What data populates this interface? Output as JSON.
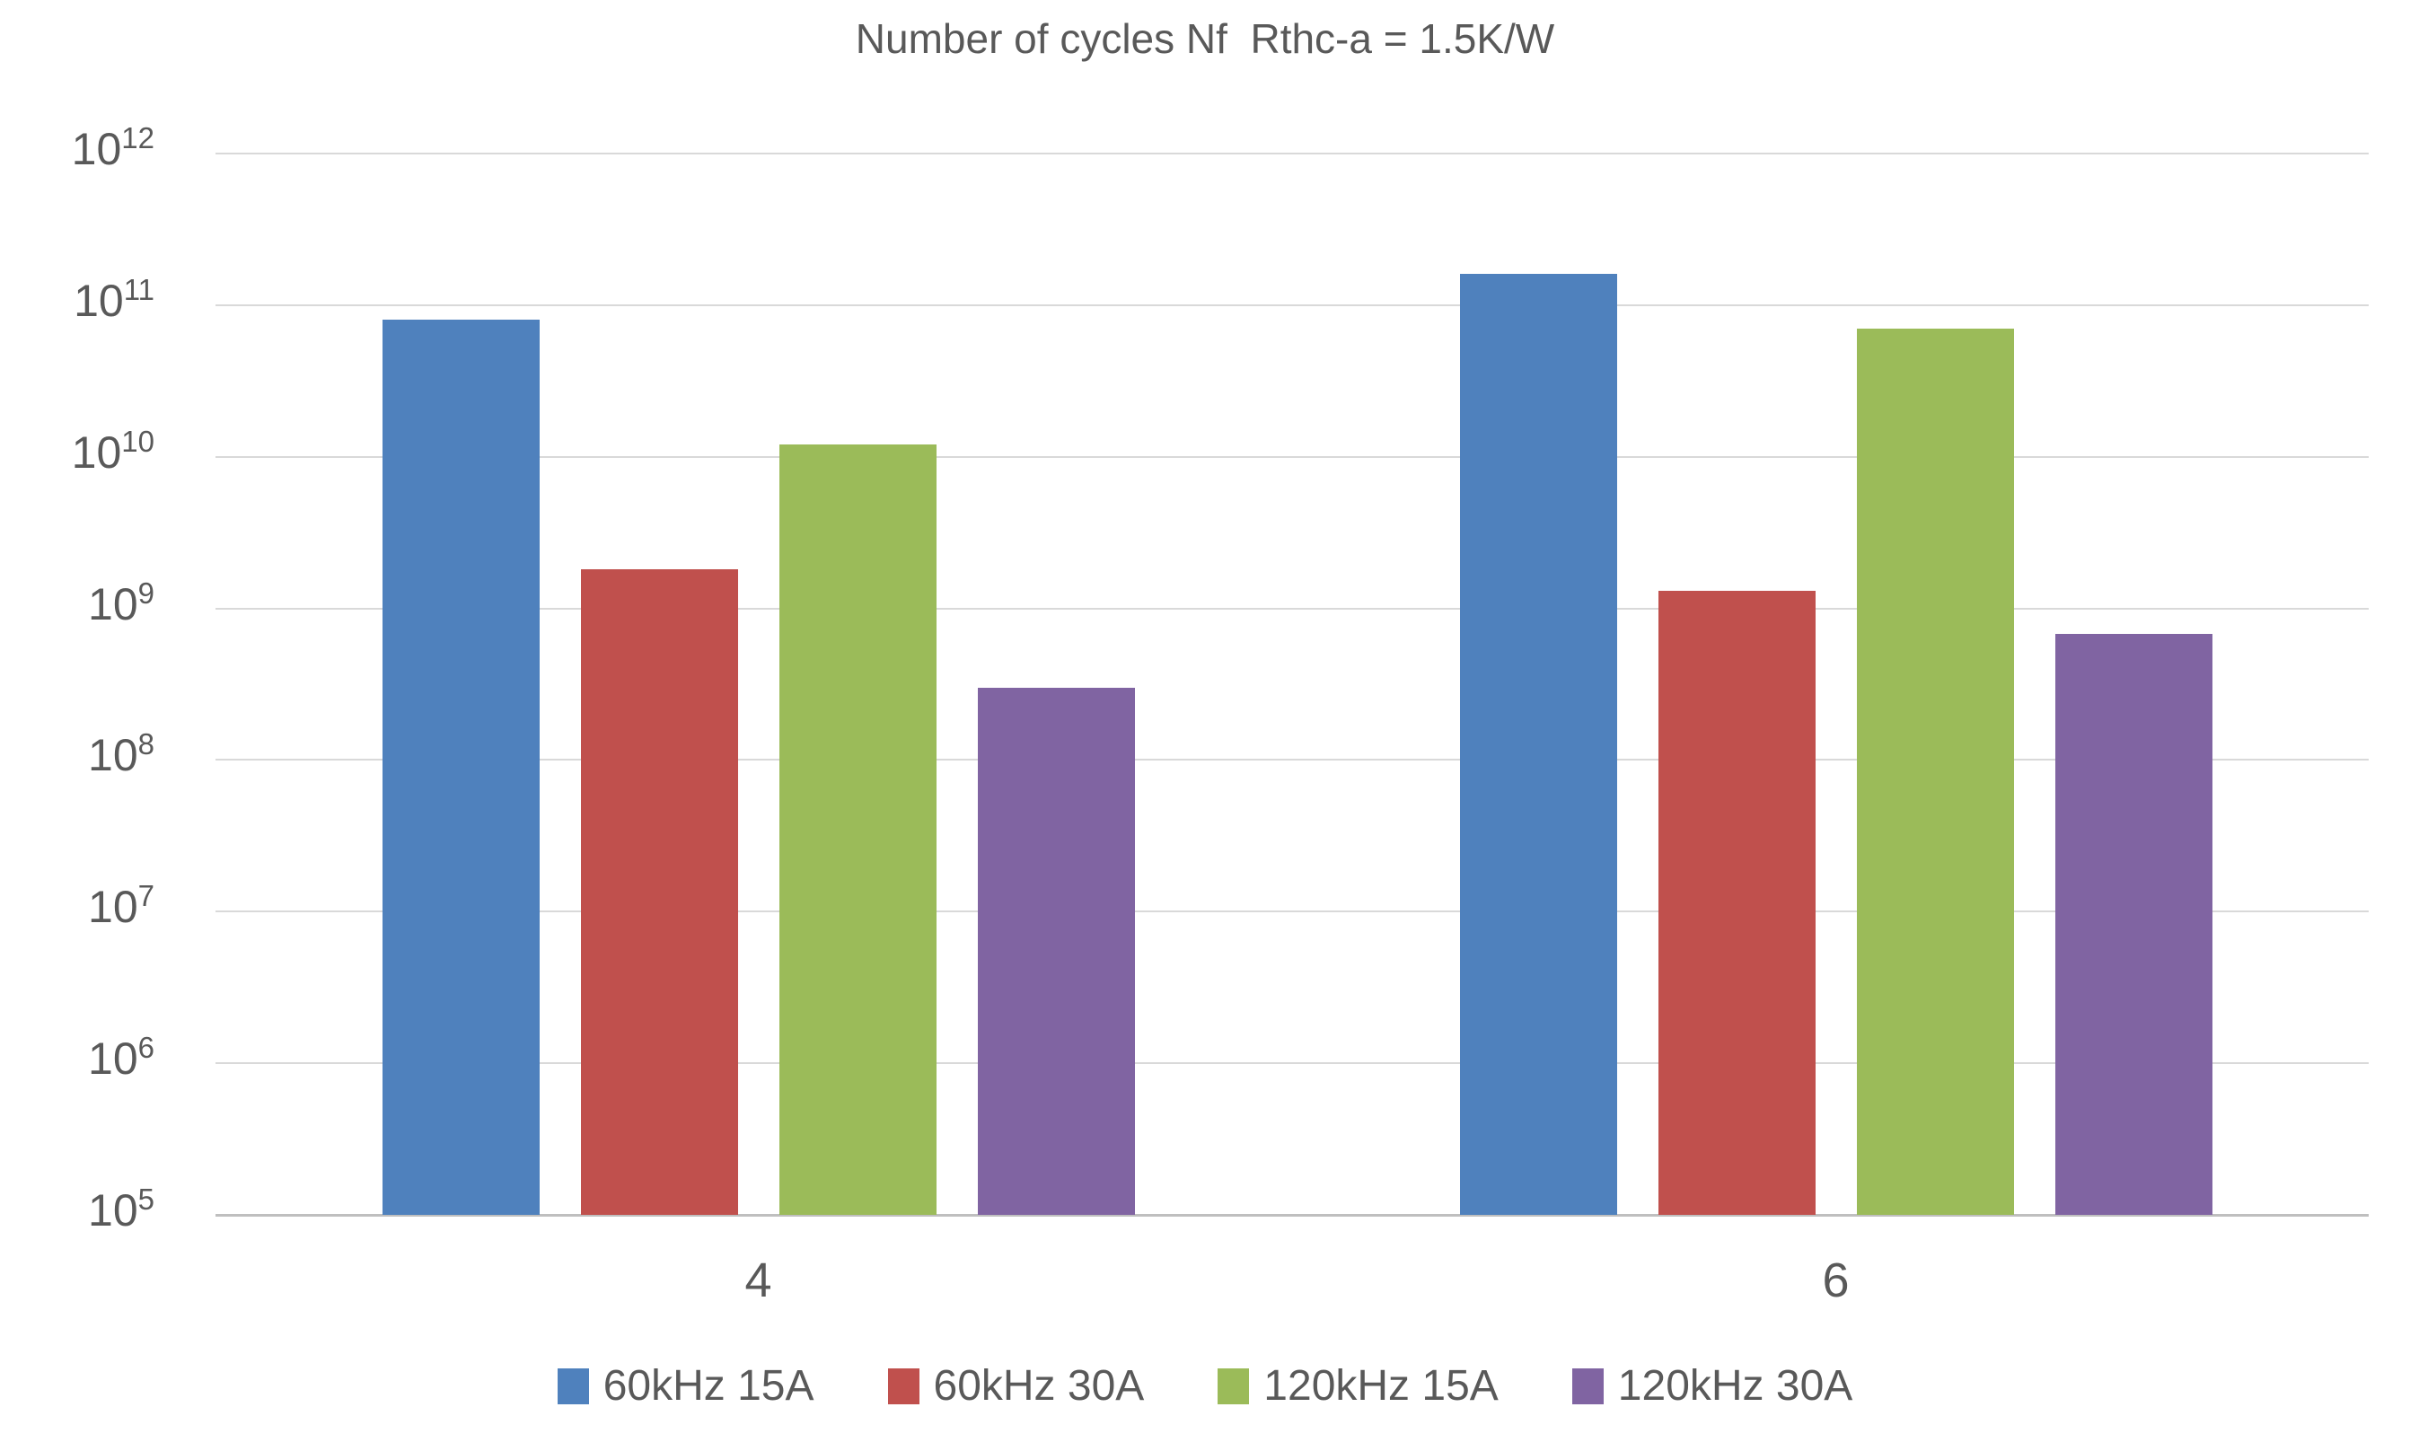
{
  "chart_data": {
    "type": "bar",
    "title": "Number of cycles Nf  Rthc-a = 1.5K/W",
    "y_scale": "log10",
    "ylim": [
      100000.0,
      1000000000000.0
    ],
    "y_tick_exponents": [
      12,
      11,
      10,
      9,
      8,
      7,
      6,
      5
    ],
    "y_tick_base": "10",
    "xlabel": "",
    "ylabel": "",
    "grid": true,
    "legend_position": "bottom",
    "categories": [
      "4",
      "6"
    ],
    "series": [
      {
        "name": "60kHz 15A",
        "color": "#4F81BD",
        "values": [
          80000000000.0,
          160000000000.0
        ]
      },
      {
        "name": "60kHz 30A",
        "color": "#C0504D",
        "values": [
          1800000000.0,
          1300000000.0
        ]
      },
      {
        "name": "120kHz 15A",
        "color": "#9BBB59",
        "values": [
          12000000000.0,
          70000000000.0
        ]
      },
      {
        "name": "120kHz 30A",
        "color": "#8064A2",
        "values": [
          300000000.0,
          680000000.0
        ]
      }
    ]
  },
  "colors": {
    "gridline": "#D9D9D9",
    "axis_line": "#BFBFBF",
    "text": "#595959",
    "background": "#FFFFFF"
  }
}
